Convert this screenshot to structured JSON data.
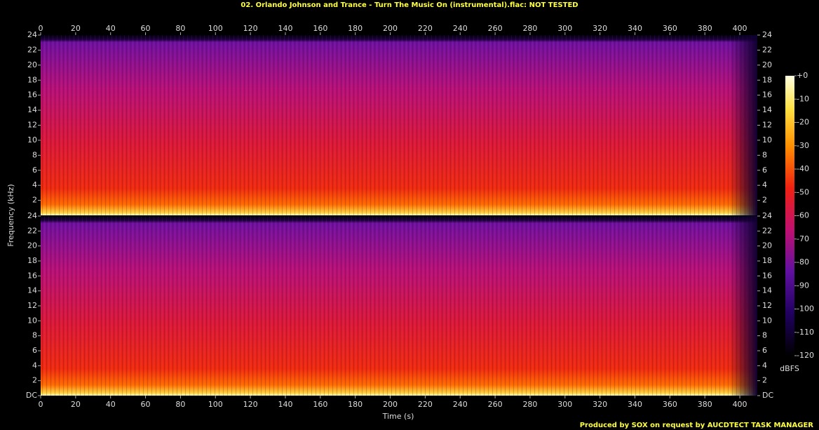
{
  "chart_data": {
    "type": "spectrogram",
    "title": "02. Orlando Johnson and Trance - Turn The Music On (instrumental).flac: NOT TESTED",
    "xlabel": "Time (s)",
    "ylabel": "Frequency (kHz)",
    "xlim": [
      0,
      410
    ],
    "xticks": [
      0,
      20,
      40,
      60,
      80,
      100,
      120,
      140,
      160,
      180,
      200,
      220,
      240,
      260,
      280,
      300,
      320,
      340,
      360,
      380,
      400
    ],
    "panels": [
      {
        "ylim": [
          0,
          24
        ],
        "yticks": [
          2,
          4,
          6,
          8,
          10,
          12,
          14,
          16,
          18,
          20,
          22,
          24
        ]
      },
      {
        "ylim": [
          0,
          24
        ],
        "yticks": [
          {
            "value": 0,
            "label": "DC"
          },
          2,
          4,
          6,
          8,
          10,
          12,
          14,
          16,
          18,
          20,
          22,
          24
        ]
      }
    ],
    "colorbar": {
      "label": "dBFS",
      "lim": [
        -120,
        0
      ],
      "ticks": [
        {
          "value": 0,
          "label": "+0"
        },
        -10,
        -20,
        -30,
        -40,
        -50,
        -60,
        -70,
        -80,
        -90,
        -100,
        -110,
        -120
      ]
    },
    "footer": "Produced by SOX on request by AUCDTECT TASK MANAGER"
  }
}
